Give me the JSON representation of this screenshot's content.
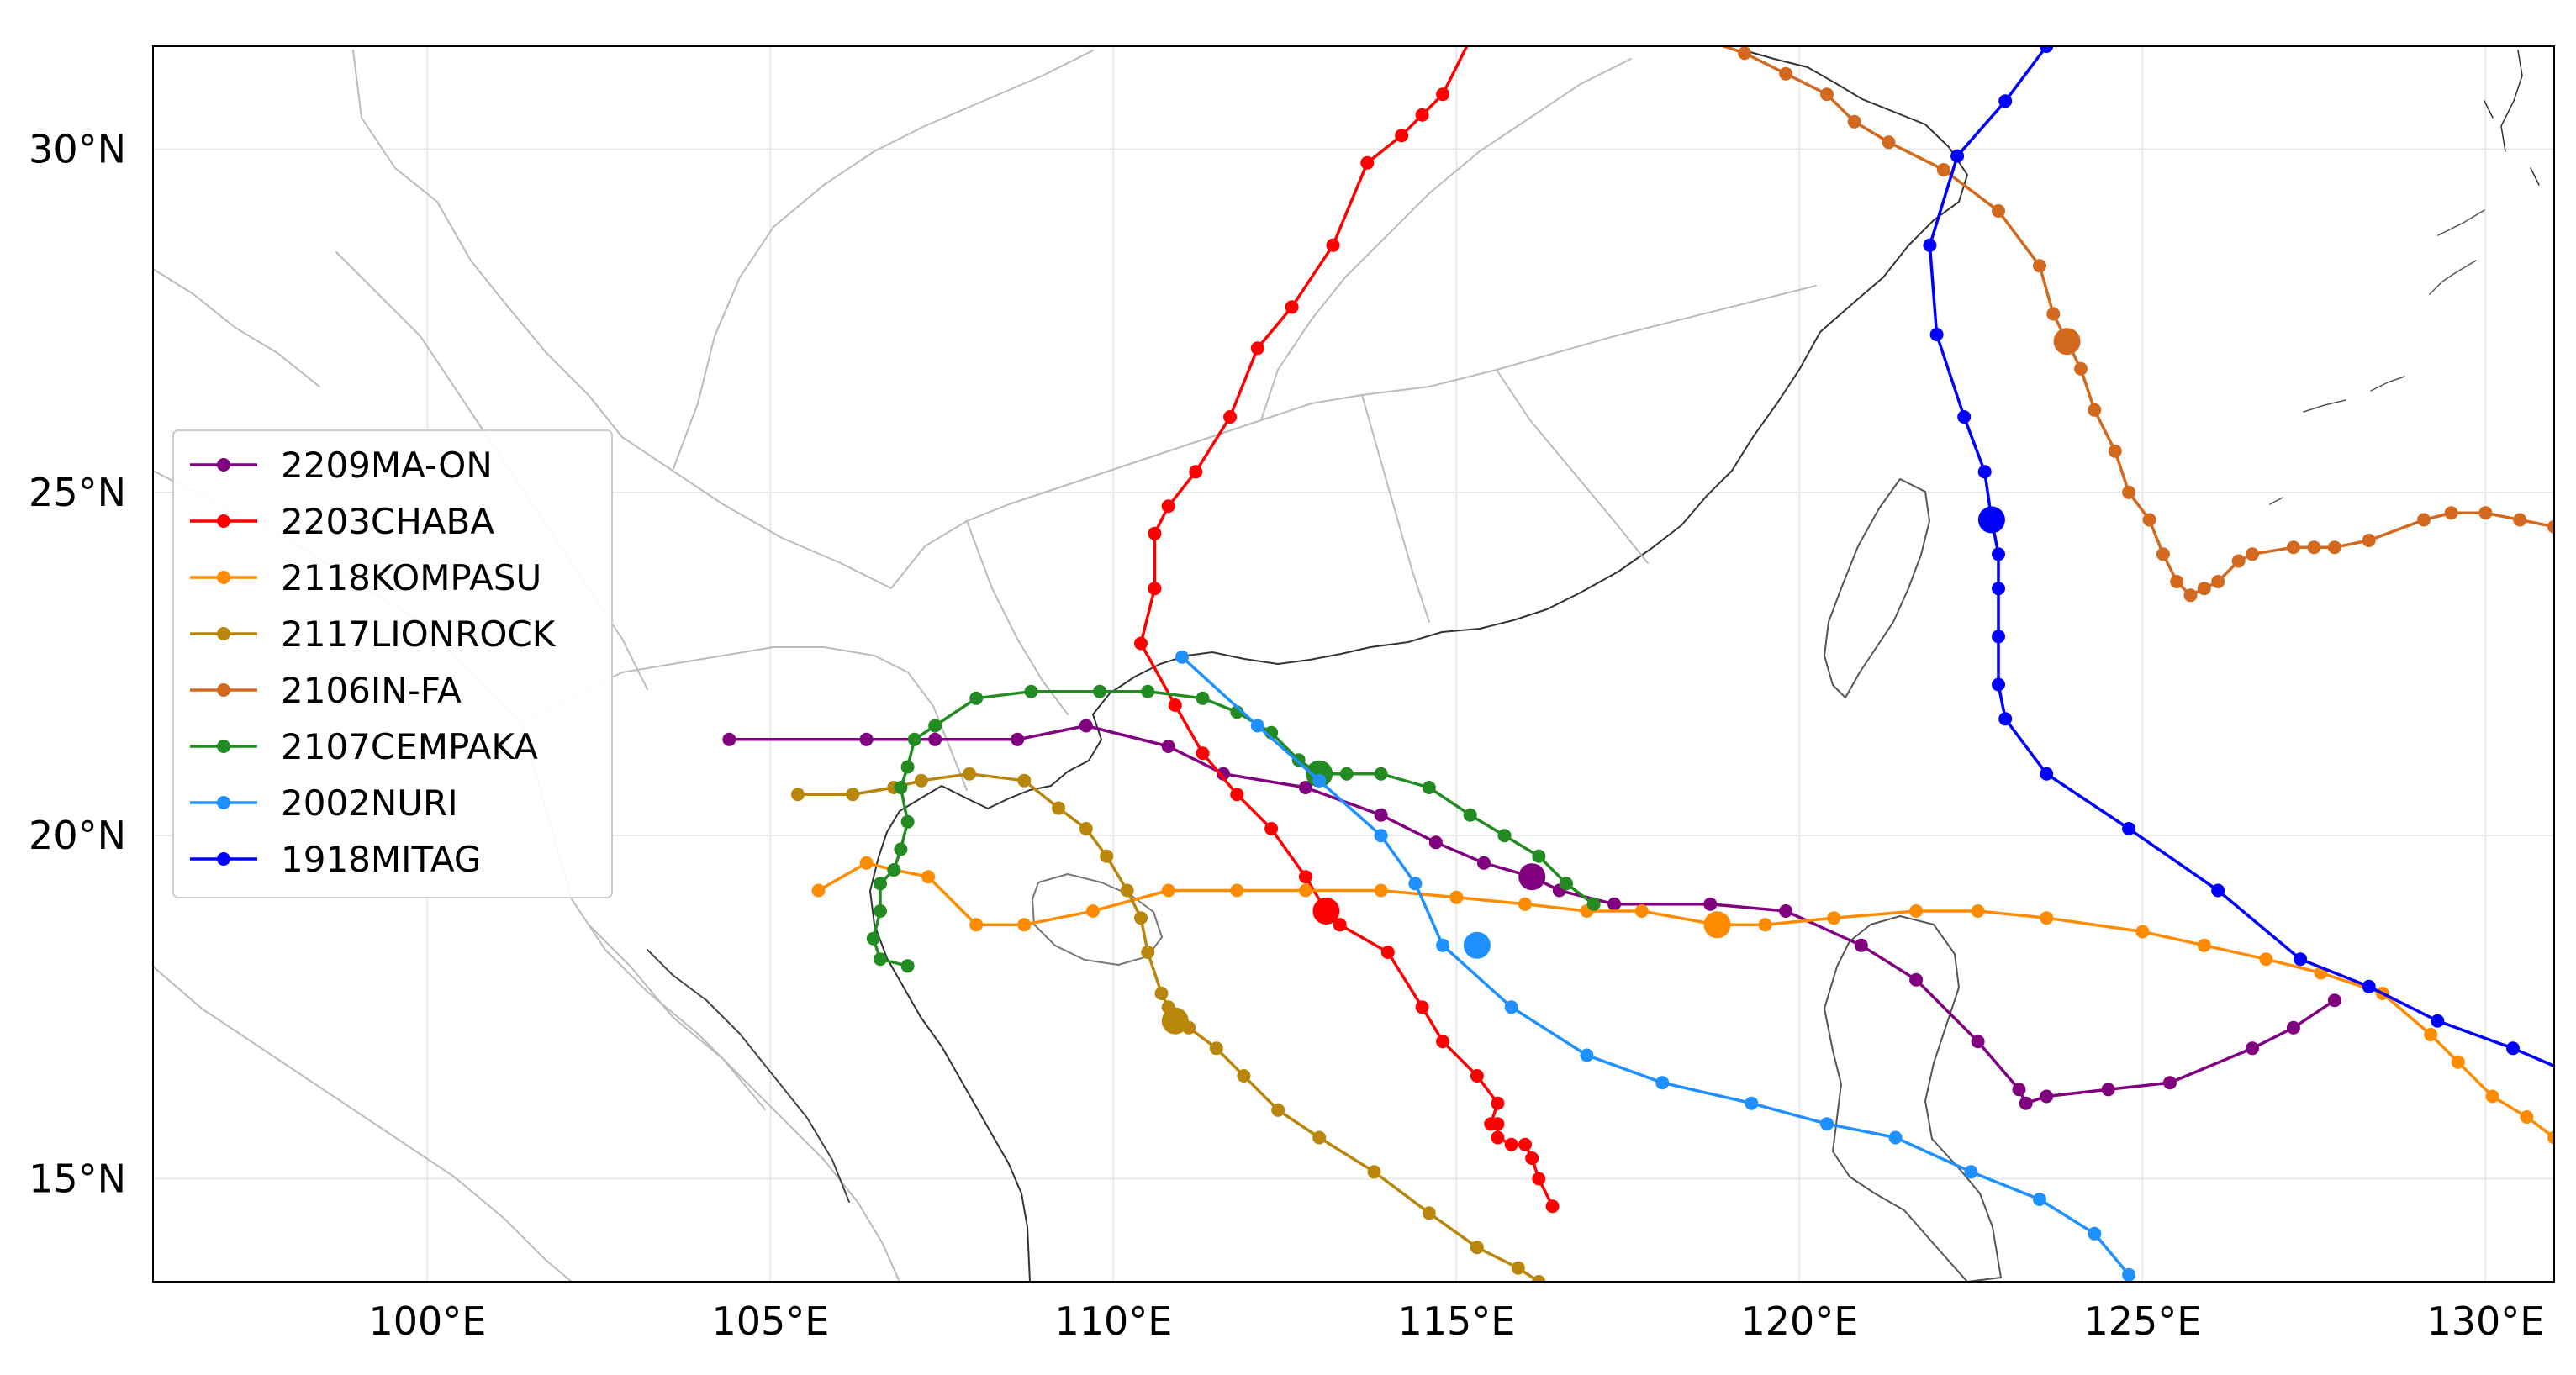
{
  "chart_data": {
    "type": "line",
    "title": "",
    "xlabel": "",
    "ylabel": "",
    "xlim": [
      96,
      131
    ],
    "ylim": [
      13.5,
      31.5
    ],
    "grid": true,
    "legend_position": "center-left",
    "x_ticks": [
      {
        "value": 100,
        "label": "100°E"
      },
      {
        "value": 105,
        "label": "105°E"
      },
      {
        "value": 110,
        "label": "110°E"
      },
      {
        "value": 115,
        "label": "115°E"
      },
      {
        "value": 120,
        "label": "120°E"
      },
      {
        "value": 125,
        "label": "125°E"
      },
      {
        "value": 130,
        "label": "130°E"
      }
    ],
    "y_ticks": [
      {
        "value": 15,
        "label": "15°N"
      },
      {
        "value": 20,
        "label": "20°N"
      },
      {
        "value": 25,
        "label": "25°N"
      },
      {
        "value": 30,
        "label": "30°N"
      }
    ],
    "series": [
      {
        "name": "2209MA-ON",
        "color": "#800080",
        "points": [
          [
            127.8,
            17.6
          ],
          [
            127.2,
            17.2
          ],
          [
            126.6,
            16.9
          ],
          [
            125.4,
            16.4
          ],
          [
            124.5,
            16.3
          ],
          [
            123.6,
            16.2
          ],
          [
            123.3,
            16.1
          ],
          [
            123.2,
            16.3
          ],
          [
            122.6,
            17.0
          ],
          [
            121.7,
            17.9
          ],
          [
            120.9,
            18.4
          ],
          [
            119.8,
            18.9
          ],
          [
            118.7,
            19.0
          ],
          [
            117.3,
            19.0
          ],
          [
            116.5,
            19.2
          ],
          [
            116.1,
            19.4
          ],
          [
            115.4,
            19.6
          ],
          [
            114.7,
            19.9
          ],
          [
            113.9,
            20.3
          ],
          [
            112.8,
            20.7
          ],
          [
            111.6,
            20.9
          ],
          [
            110.8,
            21.3
          ],
          [
            109.6,
            21.6
          ],
          [
            108.6,
            21.4
          ],
          [
            107.4,
            21.4
          ],
          [
            106.4,
            21.4
          ],
          [
            104.4,
            21.4
          ]
        ],
        "large_points": [
          [
            116.1,
            19.4
          ]
        ]
      },
      {
        "name": "2203CHABA",
        "color": "#ff0000",
        "points": [
          [
            116.4,
            14.6
          ],
          [
            116.2,
            15.0
          ],
          [
            116.1,
            15.3
          ],
          [
            116.0,
            15.5
          ],
          [
            115.8,
            15.5
          ],
          [
            115.6,
            15.6
          ],
          [
            115.6,
            15.8
          ],
          [
            115.5,
            15.8
          ],
          [
            115.6,
            16.1
          ],
          [
            115.3,
            16.5
          ],
          [
            114.8,
            17.0
          ],
          [
            114.5,
            17.5
          ],
          [
            114.0,
            18.3
          ],
          [
            113.3,
            18.7
          ],
          [
            113.1,
            18.9
          ],
          [
            112.8,
            19.4
          ],
          [
            112.3,
            20.1
          ],
          [
            111.8,
            20.6
          ],
          [
            111.3,
            21.2
          ],
          [
            110.9,
            21.9
          ],
          [
            110.4,
            22.8
          ],
          [
            110.6,
            23.6
          ],
          [
            110.6,
            24.4
          ],
          [
            110.8,
            24.8
          ],
          [
            111.2,
            25.3
          ],
          [
            111.7,
            26.1
          ],
          [
            112.1,
            27.1
          ],
          [
            112.6,
            27.7
          ],
          [
            113.2,
            28.6
          ],
          [
            113.7,
            29.8
          ],
          [
            114.2,
            30.2
          ],
          [
            114.5,
            30.5
          ],
          [
            114.8,
            30.8
          ],
          [
            115.2,
            31.6
          ]
        ],
        "large_points": [
          [
            113.1,
            18.9
          ]
        ]
      },
      {
        "name": "2118KOMPASU",
        "color": "#ff8c00",
        "points": [
          [
            131.0,
            15.6
          ],
          [
            130.6,
            15.9
          ],
          [
            130.1,
            16.2
          ],
          [
            129.6,
            16.7
          ],
          [
            129.2,
            17.1
          ],
          [
            128.5,
            17.7
          ],
          [
            127.6,
            18.0
          ],
          [
            126.8,
            18.2
          ],
          [
            125.9,
            18.4
          ],
          [
            125.0,
            18.6
          ],
          [
            123.6,
            18.8
          ],
          [
            122.6,
            18.9
          ],
          [
            121.7,
            18.9
          ],
          [
            120.5,
            18.8
          ],
          [
            119.5,
            18.7
          ],
          [
            118.8,
            18.7
          ],
          [
            117.7,
            18.9
          ],
          [
            116.9,
            18.9
          ],
          [
            116.0,
            19.0
          ],
          [
            115.0,
            19.1
          ],
          [
            113.9,
            19.2
          ],
          [
            112.8,
            19.2
          ],
          [
            111.8,
            19.2
          ],
          [
            110.8,
            19.2
          ],
          [
            109.7,
            18.9
          ],
          [
            108.7,
            18.7
          ],
          [
            108.0,
            18.7
          ],
          [
            107.3,
            19.4
          ],
          [
            106.8,
            19.5
          ],
          [
            106.4,
            19.6
          ],
          [
            105.7,
            19.2
          ]
        ],
        "large_points": [
          [
            118.8,
            18.7
          ]
        ]
      },
      {
        "name": "2117LIONROCK",
        "color": "#b8860b",
        "points": [
          [
            116.2,
            13.5
          ],
          [
            115.9,
            13.7
          ],
          [
            115.3,
            14.0
          ],
          [
            114.6,
            14.5
          ],
          [
            113.8,
            15.1
          ],
          [
            113.0,
            15.6
          ],
          [
            112.4,
            16.0
          ],
          [
            111.9,
            16.5
          ],
          [
            111.5,
            16.9
          ],
          [
            111.1,
            17.2
          ],
          [
            110.9,
            17.3
          ],
          [
            110.8,
            17.5
          ],
          [
            110.7,
            17.7
          ],
          [
            110.5,
            18.3
          ],
          [
            110.4,
            18.8
          ],
          [
            110.2,
            19.2
          ],
          [
            109.9,
            19.7
          ],
          [
            109.6,
            20.1
          ],
          [
            109.2,
            20.4
          ],
          [
            108.7,
            20.8
          ],
          [
            107.9,
            20.9
          ],
          [
            107.2,
            20.8
          ],
          [
            106.8,
            20.7
          ],
          [
            106.2,
            20.6
          ],
          [
            105.4,
            20.6
          ]
        ],
        "large_points": [
          [
            110.9,
            17.3
          ]
        ]
      },
      {
        "name": "2106IN-FA",
        "color": "#d2691e",
        "points": [
          [
            131.0,
            24.5
          ],
          [
            130.5,
            24.6
          ],
          [
            130.0,
            24.7
          ],
          [
            129.5,
            24.7
          ],
          [
            129.1,
            24.6
          ],
          [
            128.3,
            24.3
          ],
          [
            127.8,
            24.2
          ],
          [
            127.5,
            24.2
          ],
          [
            127.2,
            24.2
          ],
          [
            126.6,
            24.1
          ],
          [
            126.4,
            24.0
          ],
          [
            126.1,
            23.7
          ],
          [
            125.9,
            23.6
          ],
          [
            125.7,
            23.5
          ],
          [
            125.5,
            23.7
          ],
          [
            125.3,
            24.1
          ],
          [
            125.1,
            24.6
          ],
          [
            124.8,
            25.0
          ],
          [
            124.6,
            25.6
          ],
          [
            124.3,
            26.2
          ],
          [
            124.1,
            26.8
          ],
          [
            123.9,
            27.2
          ],
          [
            123.7,
            27.6
          ],
          [
            123.5,
            28.3
          ],
          [
            122.9,
            29.1
          ],
          [
            122.1,
            29.7
          ],
          [
            121.3,
            30.1
          ],
          [
            120.8,
            30.4
          ],
          [
            120.4,
            30.8
          ],
          [
            119.8,
            31.1
          ],
          [
            119.2,
            31.4
          ],
          [
            118.6,
            31.6
          ]
        ],
        "large_points": [
          [
            123.9,
            27.2
          ]
        ]
      },
      {
        "name": "2107CEMPAKA",
        "color": "#228b22",
        "points": [
          [
            117.0,
            19.0
          ],
          [
            116.6,
            19.3
          ],
          [
            116.2,
            19.7
          ],
          [
            115.7,
            20.0
          ],
          [
            115.2,
            20.3
          ],
          [
            114.6,
            20.7
          ],
          [
            113.9,
            20.9
          ],
          [
            113.4,
            20.9
          ],
          [
            113.0,
            20.9
          ],
          [
            112.7,
            21.1
          ],
          [
            112.3,
            21.5
          ],
          [
            111.8,
            21.8
          ],
          [
            111.3,
            22.0
          ],
          [
            110.5,
            22.1
          ],
          [
            109.8,
            22.1
          ],
          [
            108.8,
            22.1
          ],
          [
            108.0,
            22.0
          ],
          [
            107.4,
            21.6
          ],
          [
            107.1,
            21.4
          ],
          [
            107.0,
            21.0
          ],
          [
            106.9,
            20.7
          ],
          [
            107.0,
            20.2
          ],
          [
            106.9,
            19.8
          ],
          [
            106.8,
            19.5
          ],
          [
            106.6,
            19.3
          ],
          [
            106.6,
            18.9
          ],
          [
            106.5,
            18.5
          ],
          [
            106.6,
            18.2
          ],
          [
            107.0,
            18.1
          ]
        ],
        "large_points": [
          [
            113.0,
            20.9
          ]
        ]
      },
      {
        "name": "2002NURI",
        "color": "#1e90ff",
        "points": [
          [
            124.8,
            13.6
          ],
          [
            124.3,
            14.2
          ],
          [
            123.5,
            14.7
          ],
          [
            122.5,
            15.1
          ],
          [
            121.4,
            15.6
          ],
          [
            120.4,
            15.8
          ],
          [
            119.3,
            16.1
          ],
          [
            118.0,
            16.4
          ],
          [
            116.9,
            16.8
          ],
          [
            115.8,
            17.5
          ],
          [
            114.8,
            18.4
          ],
          [
            114.4,
            19.3
          ],
          [
            113.9,
            20.0
          ],
          [
            113.0,
            20.8
          ],
          [
            112.1,
            21.6
          ],
          [
            111.0,
            22.6
          ]
        ],
        "large_points": [
          [
            115.3,
            18.4
          ]
        ]
      },
      {
        "name": "1918MITAG",
        "color": "#0000ff",
        "points": [
          [
            131.1,
            16.6
          ],
          [
            130.4,
            16.9
          ],
          [
            129.3,
            17.3
          ],
          [
            128.3,
            17.8
          ],
          [
            127.3,
            18.2
          ],
          [
            126.1,
            19.2
          ],
          [
            124.8,
            20.1
          ],
          [
            123.6,
            20.9
          ],
          [
            123.0,
            21.7
          ],
          [
            122.9,
            22.2
          ],
          [
            122.9,
            22.9
          ],
          [
            122.9,
            23.6
          ],
          [
            122.9,
            24.1
          ],
          [
            122.8,
            24.6
          ],
          [
            122.7,
            25.3
          ],
          [
            122.4,
            26.1
          ],
          [
            122.0,
            27.3
          ],
          [
            121.9,
            28.6
          ],
          [
            122.3,
            29.9
          ],
          [
            123.0,
            30.7
          ],
          [
            123.6,
            31.5
          ]
        ],
        "large_points": [
          [
            122.8,
            24.6
          ]
        ]
      }
    ]
  }
}
